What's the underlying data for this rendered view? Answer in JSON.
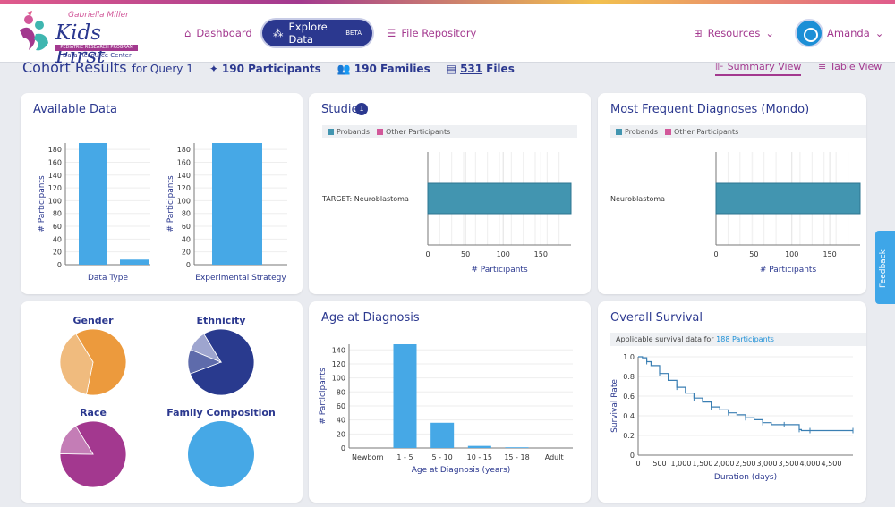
{
  "header": {
    "logo_script": "Gabriella Miller",
    "logo_title": "Kids First",
    "logo_bar": "PEDIATRIC RESEARCH PROGRAM",
    "logo_sub": "Data Resource Center",
    "nav": {
      "dashboard": "Dashboard",
      "explore": "Explore Data",
      "explore_badge": "BETA",
      "files": "File Repository",
      "resources": "Resources",
      "user": "Amanda"
    }
  },
  "cohort": {
    "title": "Cohort Results",
    "subtitle": "for Query 1",
    "participants": "190 Participants",
    "families": "190 Families",
    "files_count": "531",
    "files_label": "Files",
    "summary_view": "Summary View",
    "table_view": "Table View"
  },
  "cards": {
    "available": "Available Data",
    "studies": "Studies",
    "studies_count": "1",
    "diagnoses": "Most Frequent Diagnoses (Mondo)",
    "age": "Age at Diagnosis",
    "survival": "Overall Survival"
  },
  "legend": {
    "probands": "Probands",
    "other": "Other Participants"
  },
  "survival_note_prefix": "Applicable survival data for",
  "survival_note_link": "188 Participants",
  "feedback": "Feedback",
  "colors": {
    "bar_blue": "#46a8e6",
    "bar_teal": "#4295b0",
    "accent": "#a3398f",
    "navy": "#2b388f"
  },
  "chart_data": [
    {
      "type": "bar",
      "title": "Available Data",
      "xlabel": "Data Type",
      "ylabel": "# Participants",
      "categories": [
        "",
        ""
      ],
      "values": [
        190,
        8
      ],
      "ylim": [
        0,
        190
      ],
      "yticks": [
        0,
        20,
        40,
        60,
        80,
        100,
        120,
        140,
        160,
        180
      ]
    },
    {
      "type": "bar",
      "xlabel": "Experimental Strategy",
      "ylabel": "# Participants",
      "categories": [
        ""
      ],
      "values": [
        190
      ],
      "ylim": [
        0,
        190
      ],
      "yticks": [
        0,
        20,
        40,
        60,
        80,
        100,
        120,
        140,
        160,
        180
      ]
    },
    {
      "type": "bar",
      "title": "Studies",
      "orientation": "horizontal",
      "xlabel": "# Participants",
      "categories": [
        "TARGET: Neuroblastoma"
      ],
      "series": [
        {
          "name": "Probands",
          "values": [
            190
          ]
        },
        {
          "name": "Other Participants",
          "values": [
            0
          ]
        }
      ],
      "xticks": [
        0,
        50,
        100,
        150
      ],
      "xlim": [
        0,
        190
      ]
    },
    {
      "type": "bar",
      "title": "Most Frequent Diagnoses (Mondo)",
      "orientation": "horizontal",
      "xlabel": "# Participants",
      "categories": [
        "Neuroblastoma"
      ],
      "series": [
        {
          "name": "Probands",
          "values": [
            190
          ]
        },
        {
          "name": "Other Participants",
          "values": [
            0
          ]
        }
      ],
      "xticks": [
        0,
        50,
        100,
        150
      ],
      "xlim": [
        0,
        190
      ]
    },
    {
      "type": "pie",
      "title": "Gender",
      "labels": [
        "",
        ""
      ],
      "values": [
        62,
        38
      ]
    },
    {
      "type": "pie",
      "title": "Ethnicity",
      "labels": [
        "",
        "",
        ""
      ],
      "values": [
        78,
        12,
        10
      ]
    },
    {
      "type": "pie",
      "title": "Race",
      "labels": [
        "",
        ""
      ],
      "values": [
        84,
        16
      ]
    },
    {
      "type": "pie",
      "title": "Family Composition",
      "labels": [
        ""
      ],
      "values": [
        100
      ]
    },
    {
      "type": "bar",
      "title": "Age at Diagnosis",
      "xlabel": "Age at Diagnosis (years)",
      "ylabel": "# Participants",
      "categories": [
        "Newborn",
        "1 - 5",
        "5 - 10",
        "10 - 15",
        "15 - 18",
        "Adult"
      ],
      "values": [
        0,
        148,
        36,
        3,
        1,
        0
      ],
      "ylim": [
        0,
        148
      ],
      "yticks": [
        0,
        20,
        40,
        60,
        80,
        100,
        120,
        140
      ]
    },
    {
      "type": "line",
      "title": "Overall Survival",
      "xlabel": "Duration (days)",
      "ylabel": "Survival Rate",
      "x": [
        0,
        100,
        200,
        300,
        500,
        700,
        900,
        1100,
        1300,
        1500,
        1700,
        1900,
        2100,
        2300,
        2500,
        2700,
        2900,
        3100,
        3400,
        3700,
        3750,
        3800,
        4000,
        4500,
        5000
      ],
      "y": [
        1.0,
        0.99,
        0.95,
        0.91,
        0.83,
        0.76,
        0.69,
        0.63,
        0.58,
        0.54,
        0.49,
        0.46,
        0.43,
        0.41,
        0.38,
        0.36,
        0.33,
        0.31,
        0.31,
        0.31,
        0.26,
        0.25,
        0.25,
        0.25,
        0.25
      ],
      "xticks": [
        0,
        500,
        1000,
        1500,
        2000,
        2500,
        3000,
        3500,
        4000,
        4500
      ],
      "xtick_labels": [
        "0",
        "500",
        "1,000",
        "1,500",
        "2,000",
        "2,500",
        "3,000",
        "3,500",
        "4,000",
        "4,500"
      ],
      "yticks": [
        0,
        0.2,
        0.4,
        0.6,
        0.8,
        1.0
      ],
      "ytick_labels": [
        "0",
        "0.2",
        "0.4",
        "0.6",
        "0.8",
        "1.0"
      ],
      "xlim": [
        0,
        5000
      ],
      "ylim": [
        0,
        1.0
      ]
    }
  ]
}
